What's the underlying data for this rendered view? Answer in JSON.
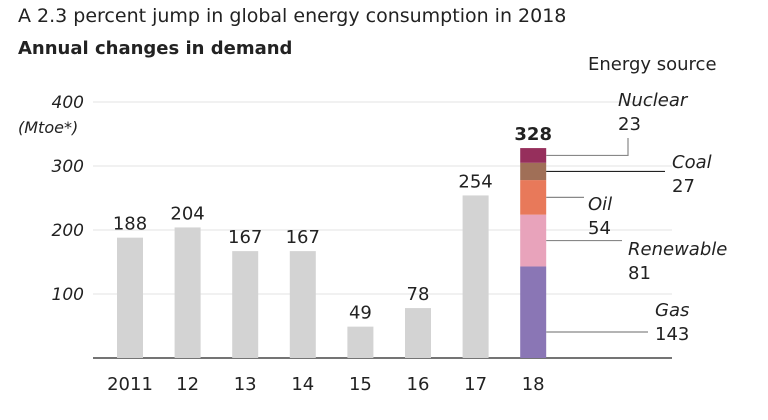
{
  "chart_data": {
    "type": "bar",
    "title": "A 2.3 percent jump in global energy consumption in 2018",
    "subtitle": "Annual changes in demand",
    "ylabel": "(Mtoe*)",
    "ylim": [
      0,
      400
    ],
    "yticks": [
      100,
      200,
      300,
      400
    ],
    "grid": true,
    "categories": [
      "2011",
      "12",
      "13",
      "14",
      "15",
      "16",
      "17",
      "18"
    ],
    "values": [
      188,
      204,
      167,
      167,
      49,
      78,
      254,
      328
    ],
    "bar_color": "#d3d3d3",
    "stack_legend_title": "Energy source",
    "stacked_category": "18",
    "stack": [
      {
        "name": "Gas",
        "value": 143,
        "color": "#8a76b5"
      },
      {
        "name": "Renewable",
        "value": 81,
        "color": "#e8a3bb"
      },
      {
        "name": "Oil",
        "value": 54,
        "color": "#e8795a"
      },
      {
        "name": "Coal",
        "value": 27,
        "color": "#a06f57"
      },
      {
        "name": "Nuclear",
        "value": 23,
        "color": "#962f5c"
      }
    ]
  }
}
